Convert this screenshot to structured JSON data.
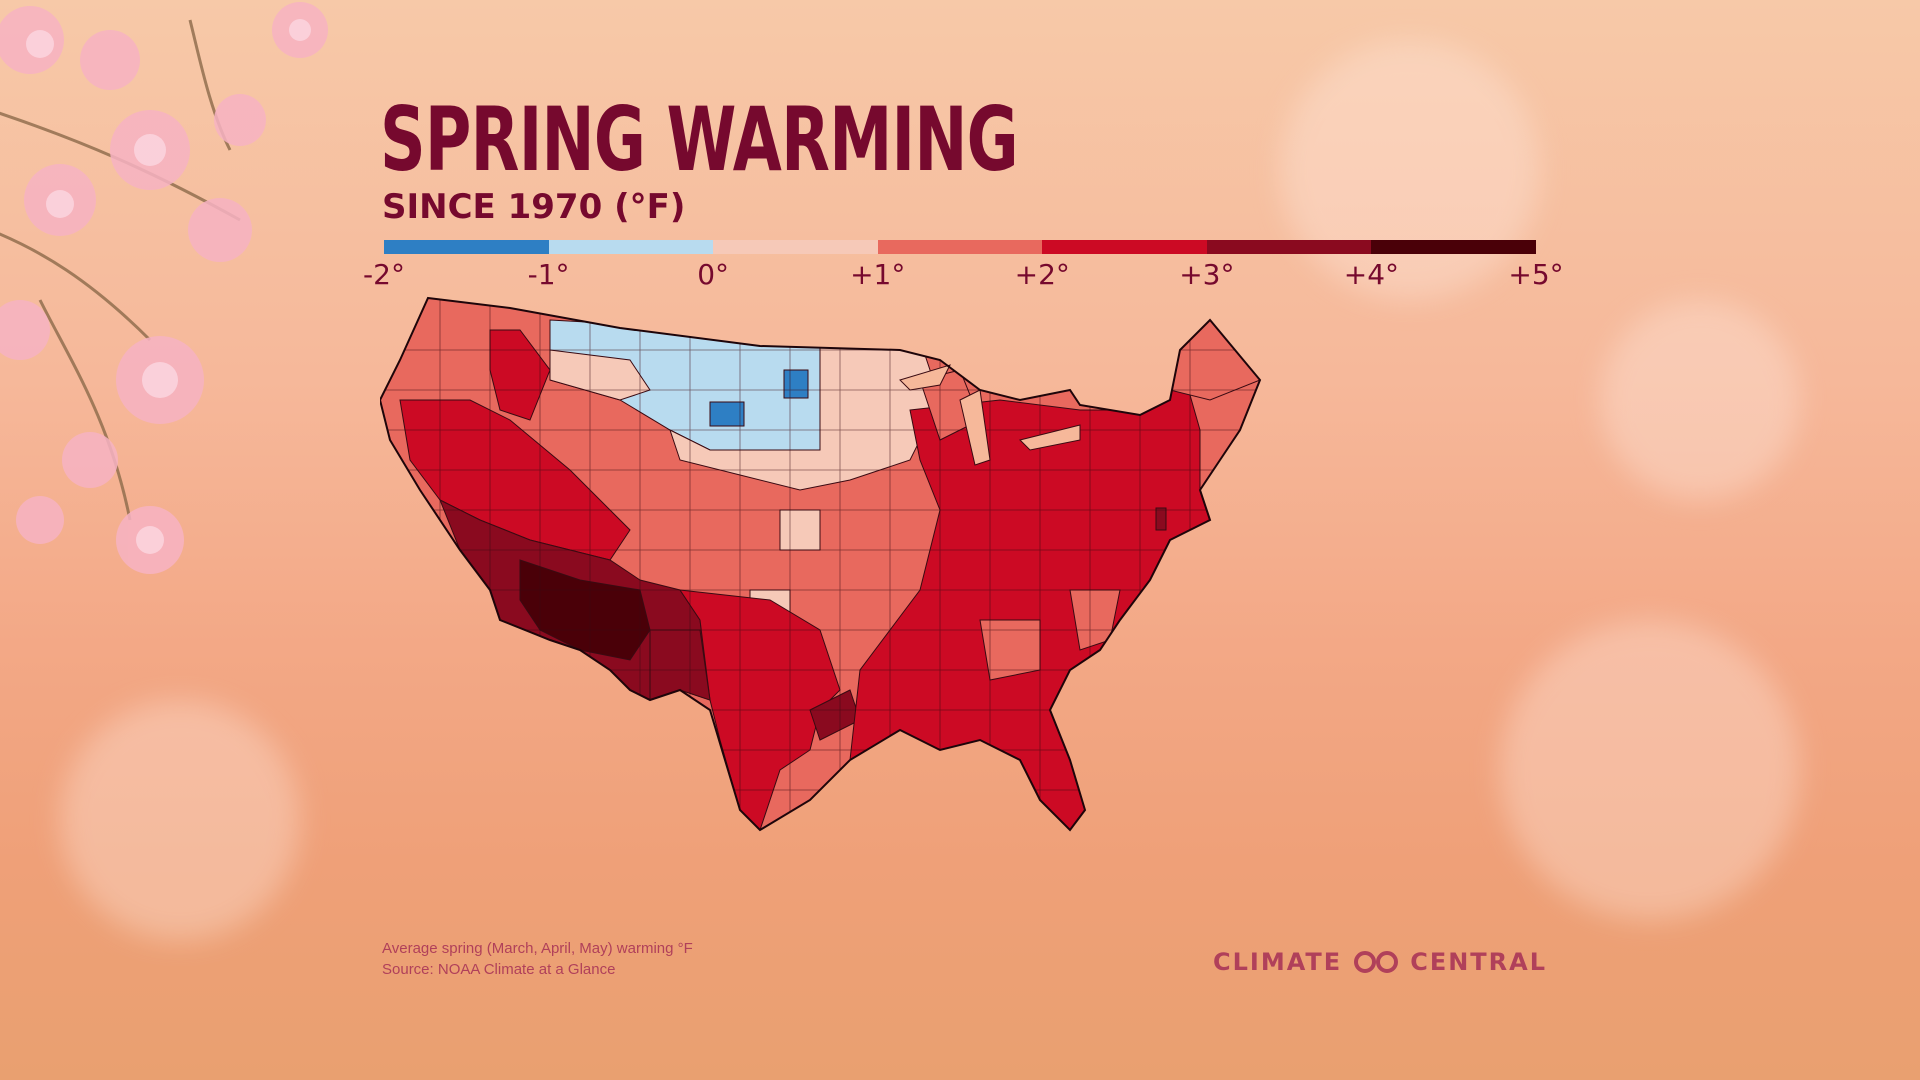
{
  "header": {
    "title": "SPRING WARMING",
    "subtitle": "SINCE 1970 (°F)"
  },
  "legend": {
    "ticks": [
      "-2°",
      "-1°",
      "0°",
      "+1°",
      "+2°",
      "+3°",
      "+4°",
      "+5°"
    ],
    "colors": [
      "#2e7fc4",
      "#b8dbef",
      "#f6c9b8",
      "#e8695e",
      "#cc0a24",
      "#8a0a1f",
      "#4a0008"
    ]
  },
  "footer": {
    "note_line1": "Average spring (March, April, May) warming °F",
    "note_line2": "Source: NOAA Climate at a Glance",
    "brand_left": "CLIMATE",
    "brand_right": "CENTRAL",
    "brand_icon": "infinity-logo-icon"
  },
  "chart_data": {
    "type": "choropleth",
    "region": "Contiguous United States (climate divisions)",
    "scale_breaks": [
      -2,
      -1,
      0,
      1,
      2,
      3,
      4,
      5
    ],
    "bins": [
      {
        "range": [
          -2,
          -1
        ],
        "color": "#2e7fc4"
      },
      {
        "range": [
          -1,
          0
        ],
        "color": "#b8dbef"
      },
      {
        "range": [
          0,
          1
        ],
        "color": "#f6c9b8"
      },
      {
        "range": [
          1,
          2
        ],
        "color": "#e8695e"
      },
      {
        "range": [
          2,
          3
        ],
        "color": "#cc0a24"
      },
      {
        "range": [
          3,
          4
        ],
        "color": "#8a0a1f"
      },
      {
        "range": [
          4,
          5
        ],
        "color": "#4a0008"
      }
    ],
    "regions": [
      {
        "name": "Southern Arizona",
        "value": 4.5
      },
      {
        "name": "Southern New Mexico",
        "value": 4.2
      },
      {
        "name": "Southern Nevada / SE California",
        "value": 3.5
      },
      {
        "name": "West Texas",
        "value": 3.4
      },
      {
        "name": "Southeast Texas coast",
        "value": 3.3
      },
      {
        "name": "Delaware",
        "value": 3.5
      },
      {
        "name": "Southern California coast",
        "value": 3.2
      },
      {
        "name": "Utah / Colorado",
        "value": 2.5
      },
      {
        "name": "Eastern US (Ohio Valley to Northeast)",
        "value": 2.5
      },
      {
        "name": "Florida",
        "value": 2.5
      },
      {
        "name": "Central Plains",
        "value": 1.5
      },
      {
        "name": "Northern New England",
        "value": 1.5
      },
      {
        "name": "Pacific Northwest",
        "value": 1.5
      },
      {
        "name": "Upper Midwest",
        "value": 0.5
      },
      {
        "name": "Nebraska / Iowa",
        "value": 0.5
      },
      {
        "name": "Montana / North Dakota / South Dakota",
        "value": -0.5
      },
      {
        "name": "Eastern North Dakota division",
        "value": -1.5
      },
      {
        "name": "Central South Dakota division",
        "value": -1.5
      }
    ]
  }
}
